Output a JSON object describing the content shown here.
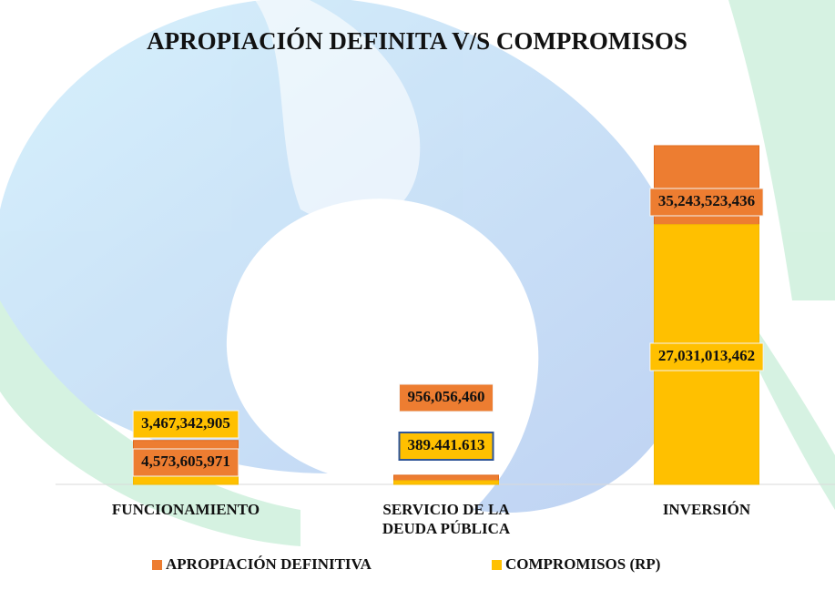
{
  "chart_data": {
    "type": "bar",
    "title": "APROPIACIÓN DEFINITA V/S COMPROMISOS",
    "categories": [
      "FUNCIONAMIENTO",
      "SERVICIO DE LA DEUDA PÚBLICA",
      "INVERSIÓN"
    ],
    "series": [
      {
        "name": "APROPIACIÓN DEFINITIVA",
        "color": "#ed7d31",
        "values": [
          4573605971,
          956056460,
          35243523436
        ],
        "value_labels": [
          "4,573,605,971",
          "956,056,460",
          "35,243,523,436"
        ]
      },
      {
        "name": "COMPROMISOS (RP)",
        "color": "#ffc000",
        "values": [
          3467342905,
          389441613,
          27031013462
        ],
        "value_labels": [
          "3,467,342,905",
          "389.441.613",
          "27,031,013,462"
        ]
      }
    ],
    "legend": "bottom"
  }
}
